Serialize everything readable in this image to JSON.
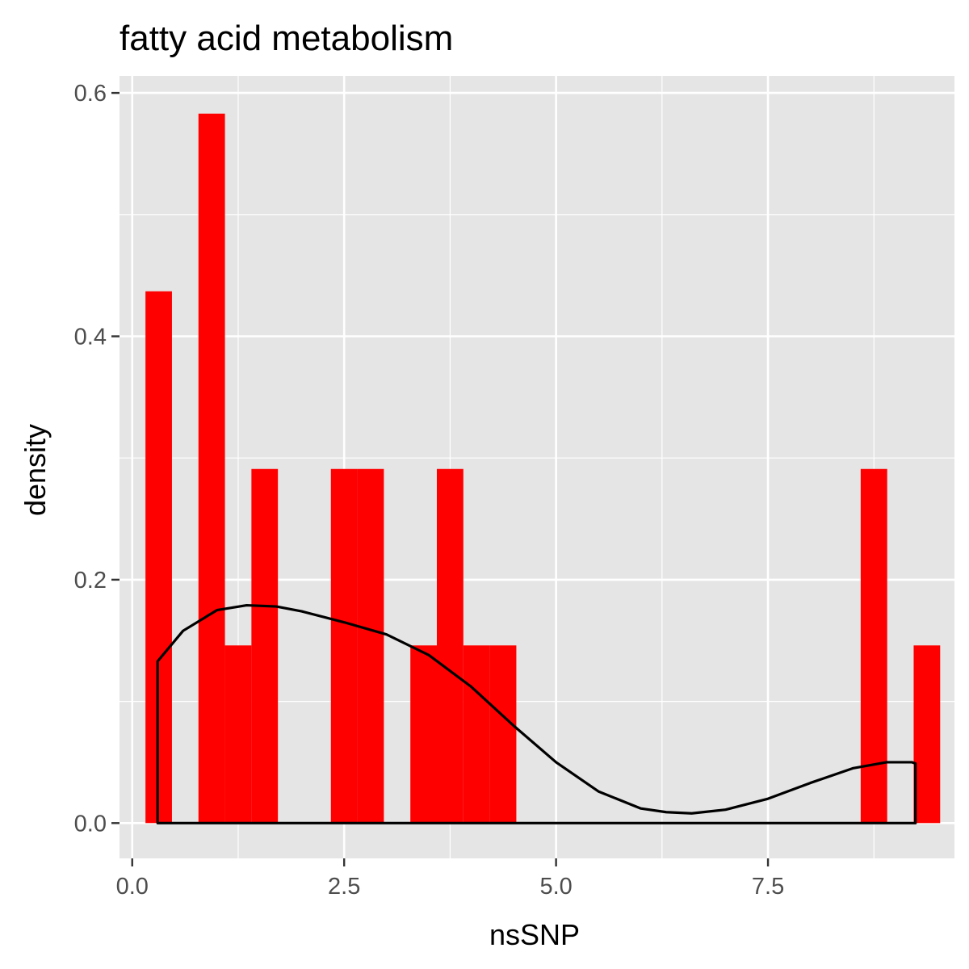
{
  "chart_data": {
    "type": "bar",
    "title": "fatty acid metabolism",
    "xlabel": "nsSNP",
    "ylabel": "density",
    "xlim": [
      -0.15,
      9.7
    ],
    "ylim": [
      -0.029,
      0.614
    ],
    "x_ticks": [
      0,
      2.5,
      5,
      7.5
    ],
    "x_tick_labels": [
      "0.0",
      "2.5",
      "5.0",
      "7.5"
    ],
    "y_ticks": [
      0,
      0.2,
      0.4,
      0.6
    ],
    "y_tick_labels": [
      "0.0",
      "0.2",
      "0.4",
      "0.6"
    ],
    "x_minor_ticks": [
      1.25,
      3.75,
      6.25,
      8.75
    ],
    "y_minor_ticks": [
      0.1,
      0.3,
      0.5
    ],
    "grid": true,
    "histogram": {
      "bin_width": 0.3125,
      "fill": "#ff0000",
      "bars": [
        {
          "x": 0.3125,
          "density": 0.437
        },
        {
          "x": 0.9375,
          "density": 0.583
        },
        {
          "x": 1.25,
          "density": 0.146
        },
        {
          "x": 1.5625,
          "density": 0.291
        },
        {
          "x": 2.5,
          "density": 0.291
        },
        {
          "x": 2.8125,
          "density": 0.291
        },
        {
          "x": 3.4375,
          "density": 0.146
        },
        {
          "x": 3.75,
          "density": 0.291
        },
        {
          "x": 4.0625,
          "density": 0.146
        },
        {
          "x": 4.375,
          "density": 0.146
        },
        {
          "x": 8.75,
          "density": 0.291
        },
        {
          "x": 9.375,
          "density": 0.146
        }
      ]
    },
    "density_curve": {
      "color": "#000000",
      "points": [
        [
          0.3,
          0.133
        ],
        [
          0.6,
          0.158
        ],
        [
          1.0,
          0.175
        ],
        [
          1.35,
          0.179
        ],
        [
          1.7,
          0.178
        ],
        [
          2.0,
          0.174
        ],
        [
          2.5,
          0.165
        ],
        [
          3.0,
          0.155
        ],
        [
          3.5,
          0.138
        ],
        [
          4.0,
          0.112
        ],
        [
          4.5,
          0.08
        ],
        [
          5.0,
          0.05
        ],
        [
          5.5,
          0.026
        ],
        [
          6.0,
          0.012
        ],
        [
          6.3,
          0.009
        ],
        [
          6.6,
          0.008
        ],
        [
          7.0,
          0.011
        ],
        [
          7.5,
          0.02
        ],
        [
          8.0,
          0.033
        ],
        [
          8.5,
          0.045
        ],
        [
          8.9,
          0.05
        ],
        [
          9.2,
          0.05
        ],
        [
          9.24,
          0.049
        ]
      ]
    }
  }
}
